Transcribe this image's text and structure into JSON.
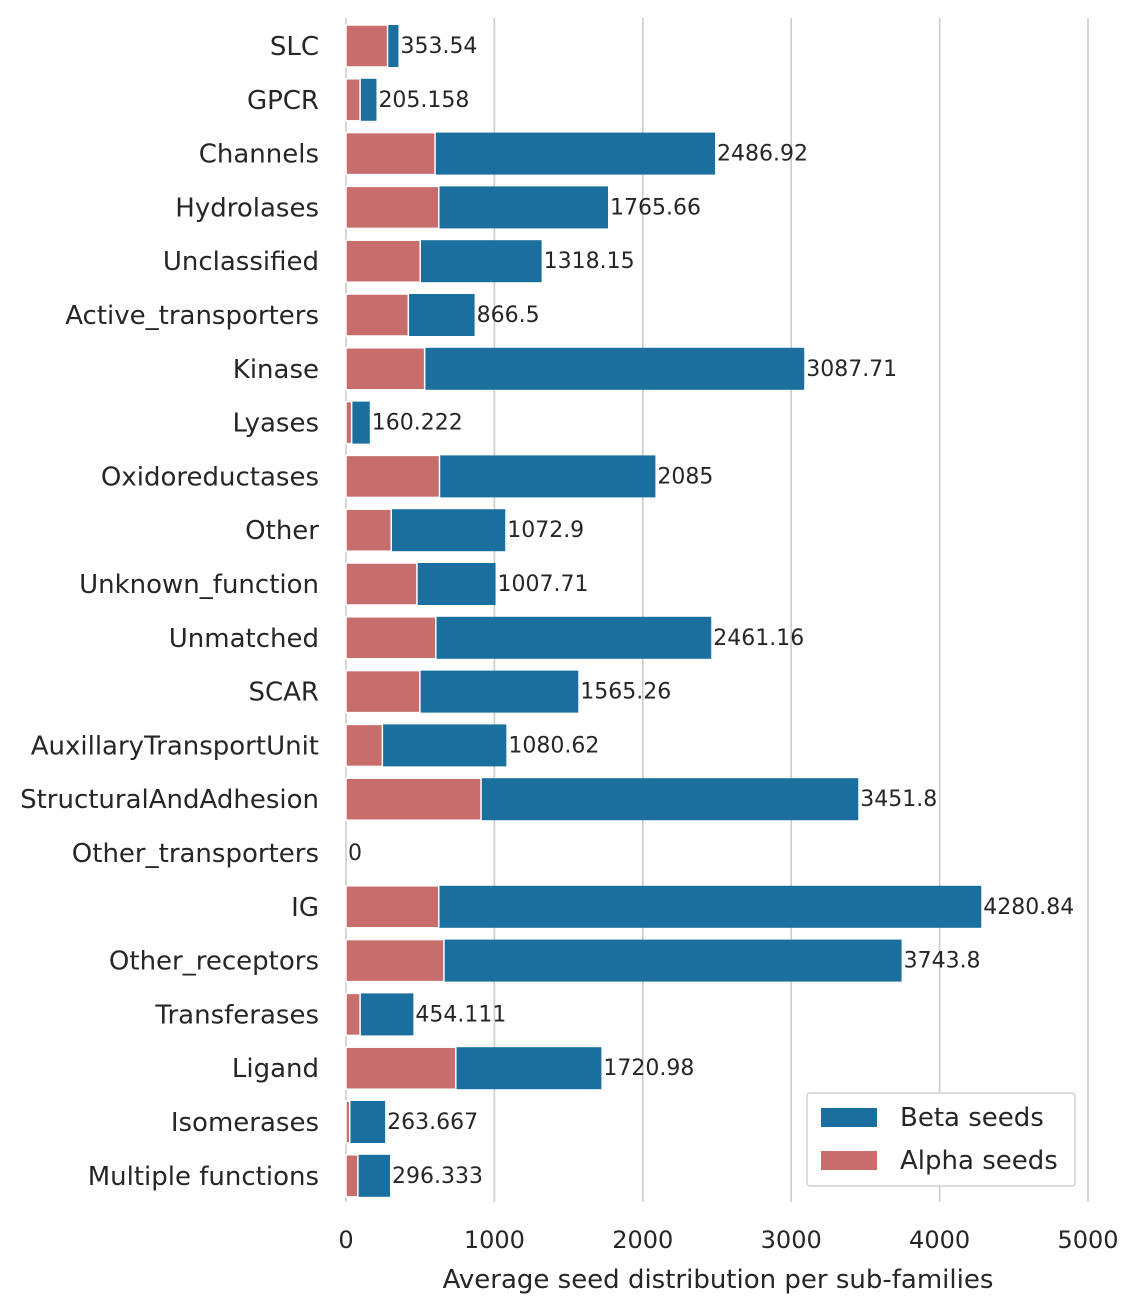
{
  "chart_data": {
    "type": "bar",
    "orientation": "horizontal",
    "stacked": "overlay",
    "categories": [
      "SLC",
      "GPCR",
      "Channels",
      "Hydrolases",
      "Unclassified",
      "Active_transporters",
      "Kinase",
      "Lyases",
      "Oxidoreductases",
      "Other",
      "Unknown_function",
      "Unmatched",
      "SCAR",
      "AuxillaryTransportUnit",
      "StructuralAndAdhesion",
      "Other_transporters",
      "IG",
      "Other_receptors",
      "Transferases",
      "Ligand",
      "Isomerases",
      "Multiple functions"
    ],
    "series": [
      {
        "name": "Beta seeds",
        "color": "#1a6f9f",
        "values": [
          353.54,
          205.158,
          2486.92,
          1765.66,
          1318.15,
          866.5,
          3087.71,
          160.222,
          2085,
          1072.9,
          1007.71,
          2461.16,
          1565.26,
          1080.62,
          3451.8,
          0,
          4280.84,
          3743.8,
          454.111,
          1720.98,
          263.667,
          296.333
        ]
      },
      {
        "name": "Alpha seeds",
        "color": "#c76d6b",
        "values": [
          280,
          95,
          600,
          625,
          500,
          420,
          530,
          38,
          630,
          305,
          478,
          605,
          498,
          245,
          910,
          0,
          625,
          660,
          95,
          740,
          25,
          80
        ]
      }
    ],
    "data_labels": [
      "353.54",
      "205.158",
      "2486.92",
      "1765.66",
      "1318.15",
      "866.5",
      "3087.71",
      "160.222",
      "2085",
      "1072.9",
      "1007.71",
      "2461.16",
      "1565.26",
      "1080.62",
      "3451.8",
      "0",
      "4280.84",
      "3743.8",
      "454.111",
      "1720.98",
      "263.667",
      "296.333"
    ],
    "xlabel": "Average seed distribution per sub-families",
    "ylabel": "",
    "xlim": [
      0,
      5000
    ],
    "xticks": [
      "0",
      "1000",
      "2000",
      "3000",
      "4000",
      "5000"
    ],
    "grid": "vertical",
    "legend_position": "bottom-right"
  }
}
